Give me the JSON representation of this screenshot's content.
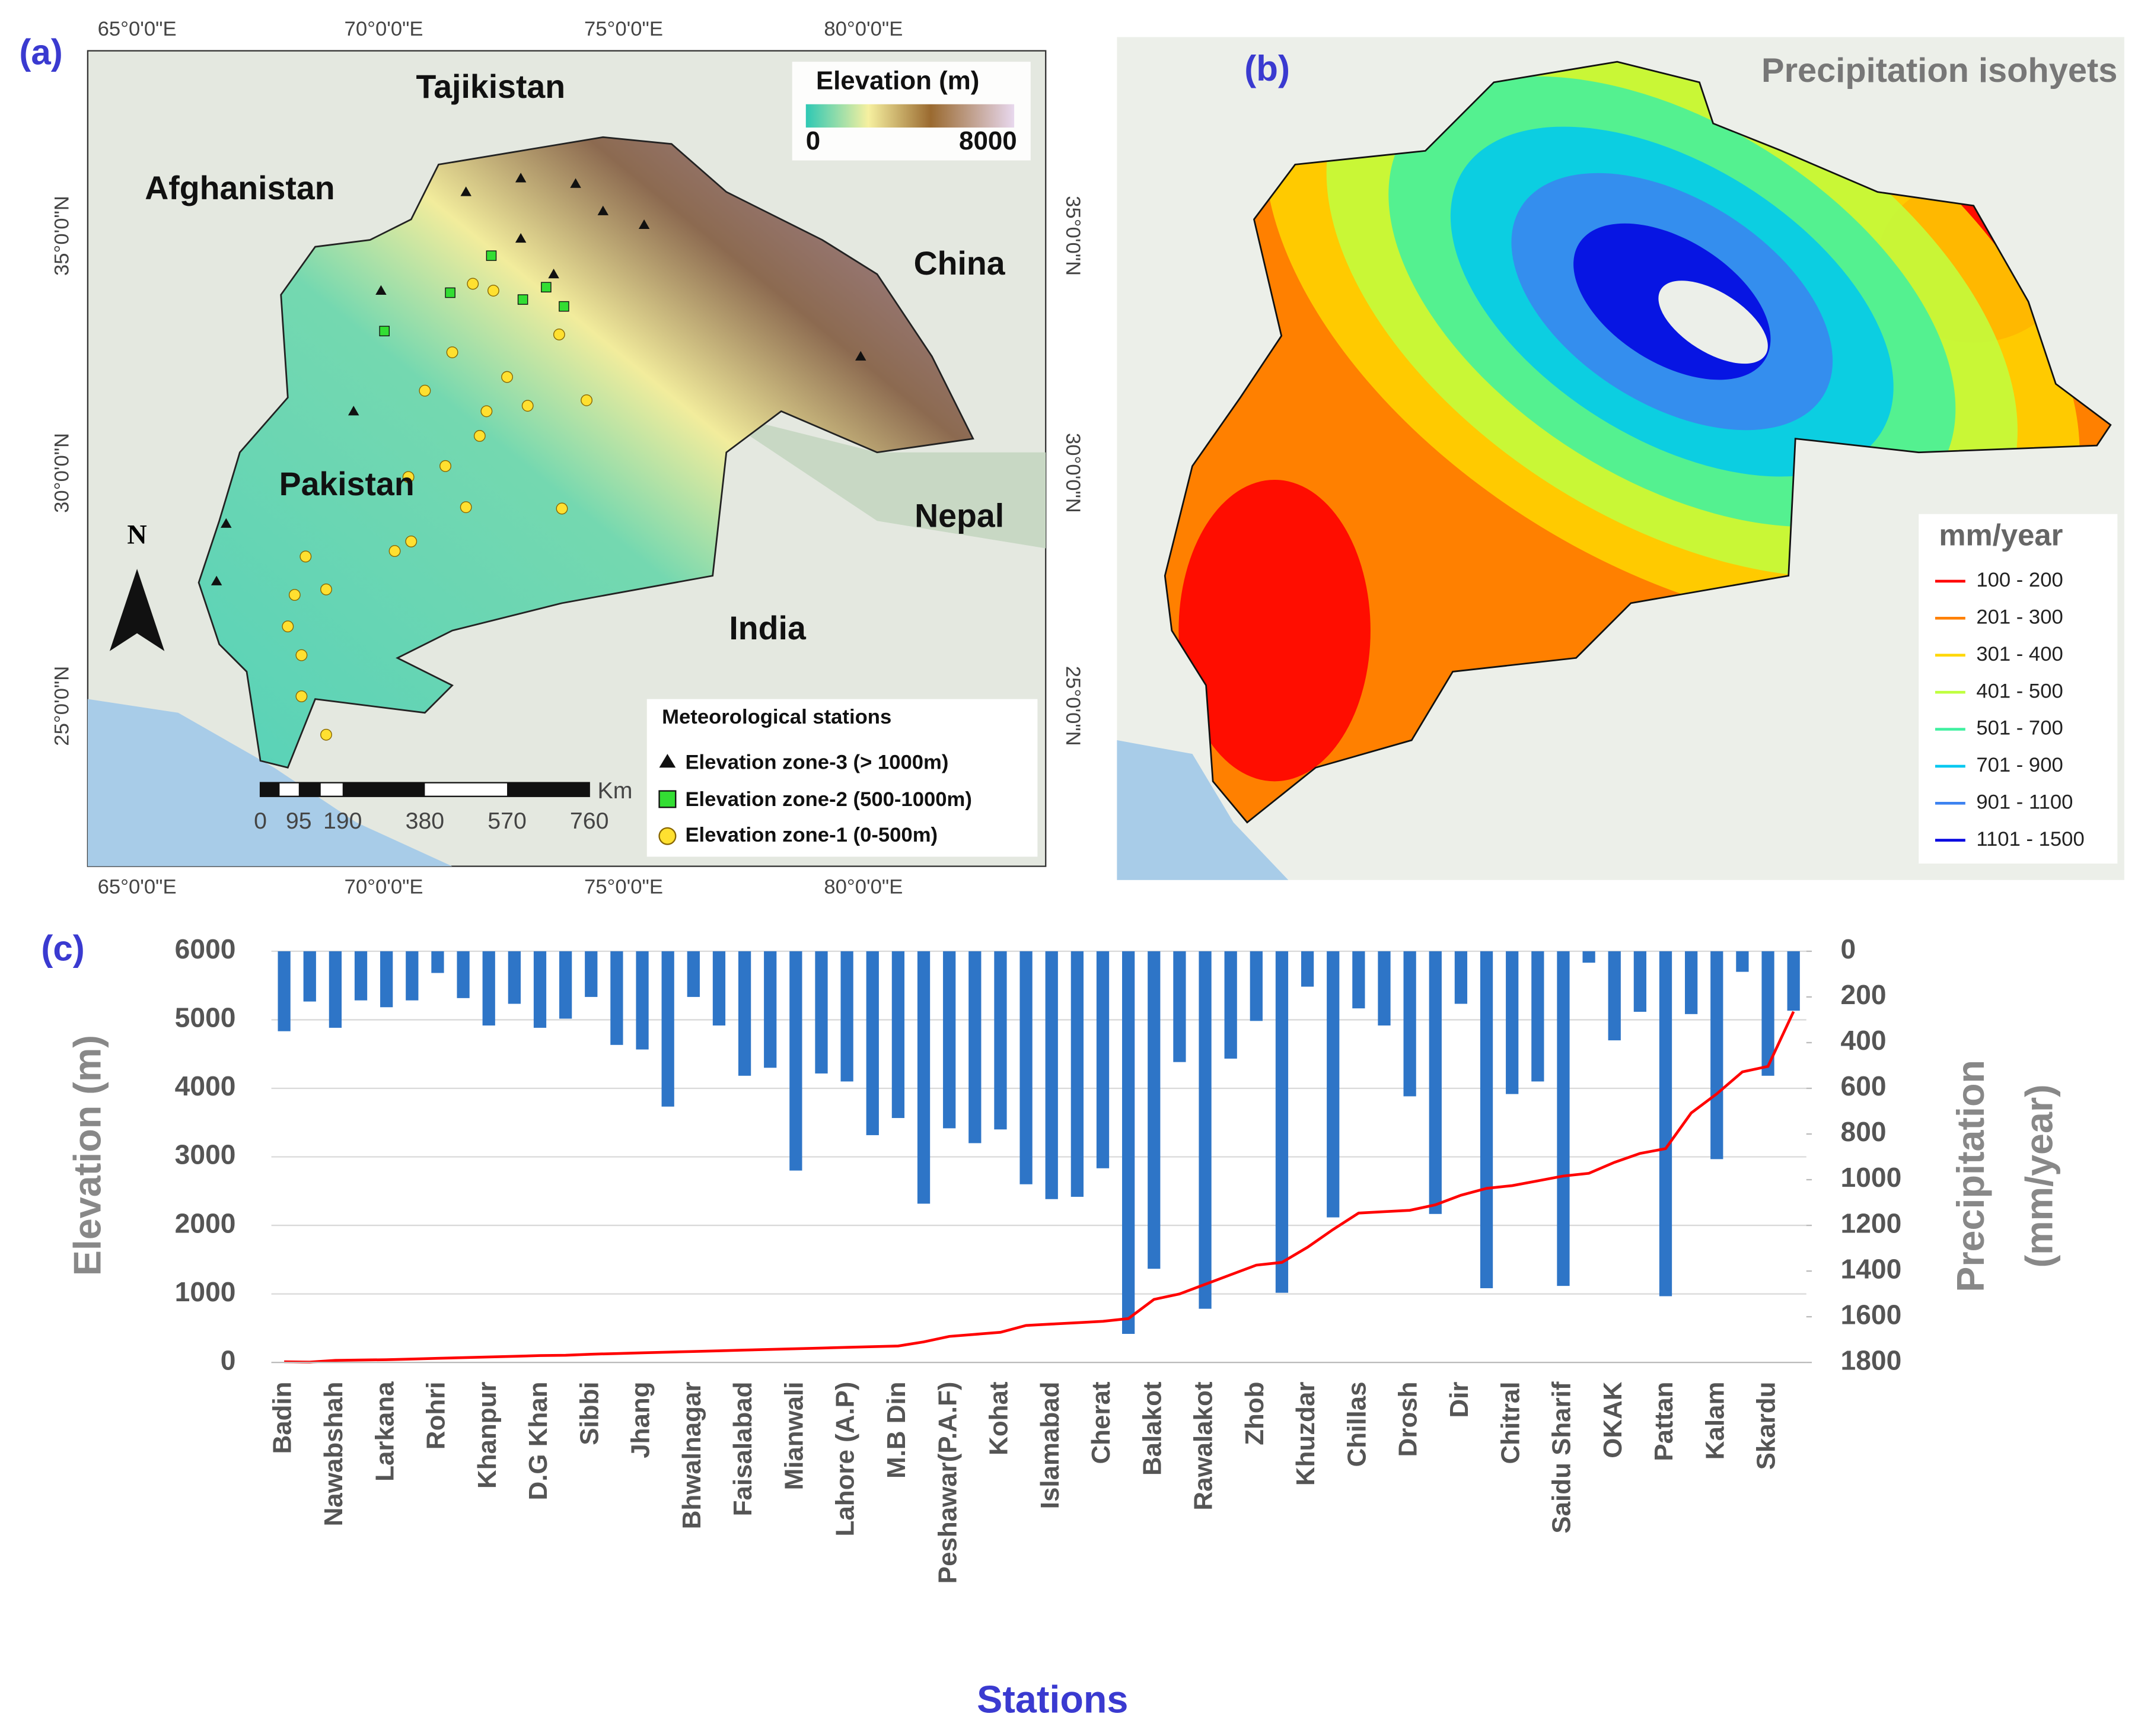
{
  "panels": {
    "a": "(a)",
    "b": "(b)",
    "c": "(c)"
  },
  "map_a": {
    "lon_labels": [
      "65°0'0\"E",
      "70°0'0\"E",
      "75°0'0\"E",
      "80°0'0\"E"
    ],
    "lat_labels": [
      "35°0'0\"N",
      "30°0'0\"N",
      "25°0'0\"N"
    ],
    "countries": [
      "Tajikistan",
      "Afghanistan",
      "China",
      "Pakistan",
      "Nepal",
      "India"
    ],
    "legend_title": "Elevation (m)",
    "legend_min": "0",
    "legend_max": "8000",
    "stations_title": "Meteorological stations",
    "stations": [
      "Elevation zone-3 (> 1000m)",
      "Elevation zone-2 (500-1000m)",
      "Elevation zone-1 (0-500m)"
    ],
    "scale_unit": "Km",
    "scale_labels": [
      "0",
      "95",
      "190",
      "380",
      "570",
      "760"
    ],
    "north": "N"
  },
  "map_b": {
    "title": "Precipitation isohyets",
    "legend_title": "mm/year",
    "classes": [
      {
        "label": "100 - 200",
        "color": "#ff0000"
      },
      {
        "label": "201 - 300",
        "color": "#ff8000"
      },
      {
        "label": "301 - 400",
        "color": "#ffd700"
      },
      {
        "label": "401 - 500",
        "color": "#bfff3f"
      },
      {
        "label": "501 - 700",
        "color": "#40f0a0"
      },
      {
        "label": "701 - 900",
        "color": "#00c8f0"
      },
      {
        "label": "901 - 1100",
        "color": "#3c82f0"
      },
      {
        "label": "1101 - 1500",
        "color": "#0000e0"
      }
    ]
  },
  "chart_data": {
    "type": "bar",
    "xlabel": "Stations",
    "ylabel": "Elevation (m)",
    "y2label": [
      "Precipitation",
      "(mm/year)"
    ],
    "categories": [
      "Badin",
      null,
      "Nawabshah",
      null,
      "Larkana",
      null,
      "Rohri",
      null,
      "Khanpur",
      null,
      "D.G Khan",
      null,
      "Sibbi",
      null,
      "Jhang",
      null,
      "Bhwalnagar",
      null,
      "Faisalabad",
      null,
      "Mianwali",
      null,
      "Lahore (A.P)",
      null,
      "M.B Din",
      null,
      "Peshawar(P.A.F)",
      null,
      "Kohat",
      null,
      "Islamabad",
      null,
      "Cherat",
      null,
      "Balakot",
      null,
      "Rawalakot",
      null,
      "Zhob",
      null,
      "Khuzdar",
      null,
      "Chillas",
      null,
      "Drosh",
      null,
      "Dir",
      null,
      "Chitral",
      null,
      "Saidu Sharif",
      null,
      "OKAK",
      null,
      "Pattan",
      null,
      "Kalam",
      null,
      "Skardu",
      null
    ],
    "series": [
      {
        "type": "bar",
        "axis": "y2",
        "color": "#2e75c7",
        "values": [
          350,
          220,
          335,
          215,
          245,
          215,
          95,
          205,
          325,
          230,
          335,
          295,
          200,
          410,
          430,
          680,
          200,
          325,
          545,
          510,
          960,
          535,
          570,
          805,
          730,
          1105,
          775,
          840,
          780,
          1020,
          1085,
          1075,
          950,
          1675,
          1390,
          485,
          1565,
          470,
          305,
          1495,
          155,
          1165,
          250,
          325,
          635,
          1150,
          230,
          1475,
          625,
          570,
          1465,
          50,
          390,
          265,
          1510,
          275,
          910,
          90,
          545,
          260
        ]
      },
      {
        "type": "line",
        "color": "#ff0000",
        "values": [
          10,
          5,
          30,
          35,
          40,
          50,
          60,
          70,
          80,
          90,
          100,
          105,
          120,
          130,
          140,
          150,
          160,
          170,
          180,
          190,
          200,
          210,
          220,
          230,
          240,
          300,
          380,
          410,
          440,
          540,
          560,
          580,
          600,
          640,
          920,
          1000,
          1140,
          1280,
          1420,
          1460,
          1680,
          1940,
          2180,
          2200,
          2220,
          2300,
          2440,
          2540,
          2580,
          2650,
          2720,
          2760,
          2920,
          3050,
          3120,
          3640,
          3920,
          4240,
          4320,
          5120
        ]
      }
    ],
    "ylim": [
      0,
      6000
    ],
    "yticks": [
      0,
      1000,
      2000,
      3000,
      4000,
      5000,
      6000
    ],
    "y2lim": [
      1800,
      0
    ],
    "y2ticks": [
      0,
      200,
      400,
      600,
      800,
      1000,
      1200,
      1400,
      1600,
      1800
    ],
    "grid": true
  }
}
